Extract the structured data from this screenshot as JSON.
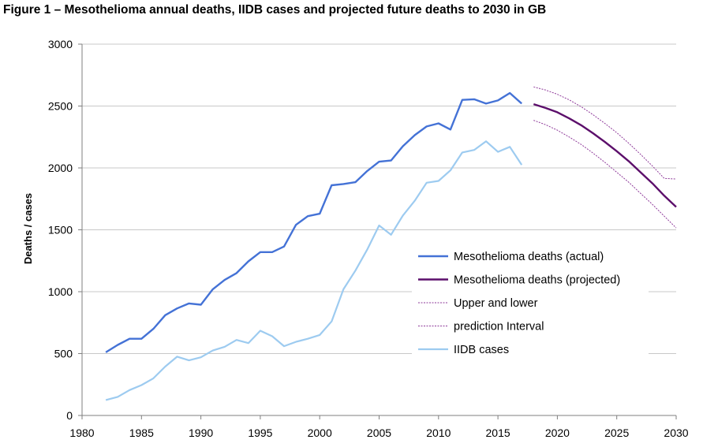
{
  "title": "Figure 1 – Mesothelioma annual deaths, IIDB cases and projected future deaths to 2030 in GB",
  "chart_data": {
    "type": "line",
    "title": "Figure 1 – Mesothelioma annual deaths, IIDB cases and projected future deaths to 2030 in GB",
    "xlabel": "",
    "ylabel": "Deaths / cases",
    "xlim": [
      1980,
      2030
    ],
    "ylim": [
      0,
      3000
    ],
    "xticks": [
      "1980",
      "1985",
      "1990",
      "1995",
      "2000",
      "2005",
      "2010",
      "2015",
      "2020",
      "2025",
      "2030"
    ],
    "yticks": [
      "0",
      "500",
      "1000",
      "1500",
      "2000",
      "2500",
      "3000"
    ],
    "grid": "horizontal",
    "legend_position": "right",
    "series": [
      {
        "name": "Mesothelioma deaths (actual)",
        "color": "#4472d6",
        "style": "solid",
        "x": [
          1982,
          1983,
          1984,
          1985,
          1986,
          1987,
          1988,
          1989,
          1990,
          1991,
          1992,
          1993,
          1994,
          1995,
          1996,
          1997,
          1998,
          1999,
          2000,
          2001,
          2002,
          2003,
          2004,
          2005,
          2006,
          2007,
          2008,
          2009,
          2010,
          2011,
          2012,
          2013,
          2014,
          2015,
          2016,
          2017
        ],
        "values": [
          510,
          570,
          620,
          620,
          700,
          810,
          865,
          905,
          895,
          1020,
          1095,
          1150,
          1245,
          1320,
          1320,
          1365,
          1540,
          1610,
          1630,
          1860,
          1870,
          1885,
          1975,
          2050,
          2060,
          2175,
          2265,
          2335,
          2360,
          2310,
          2550,
          2555,
          2520,
          2545,
          2605,
          2520
        ]
      },
      {
        "name": "Mesothelioma deaths (projected)",
        "color": "#5c0f6b",
        "style": "solid",
        "x": [
          2018,
          2019,
          2020,
          2021,
          2022,
          2023,
          2024,
          2025,
          2026,
          2027,
          2028,
          2029,
          2030
        ],
        "values": [
          2515,
          2485,
          2450,
          2400,
          2345,
          2280,
          2210,
          2135,
          2055,
          1965,
          1875,
          1775,
          1685
        ]
      },
      {
        "name": "Upper and lower",
        "color": "#8e3a9a",
        "style": "dotted",
        "x": [
          2018,
          2019,
          2020,
          2021,
          2022,
          2023,
          2024,
          2025,
          2026,
          2027,
          2028,
          2029,
          2030
        ],
        "values": [
          2655,
          2630,
          2595,
          2550,
          2495,
          2430,
          2360,
          2285,
          2200,
          2110,
          2015,
          1915,
          1910
        ]
      },
      {
        "name": "prediction Interval",
        "color": "#8e3a9a",
        "style": "dotted",
        "x": [
          2018,
          2019,
          2020,
          2021,
          2022,
          2023,
          2024,
          2025,
          2026,
          2027,
          2028,
          2029,
          2030
        ],
        "values": [
          2385,
          2350,
          2305,
          2250,
          2190,
          2120,
          2045,
          1965,
          1885,
          1795,
          1705,
          1610,
          1515
        ]
      },
      {
        "name": "IIDB cases",
        "color": "#9dcbf0",
        "style": "solid",
        "x": [
          1982,
          1983,
          1984,
          1985,
          1986,
          1987,
          1988,
          1989,
          1990,
          1991,
          1992,
          1993,
          1994,
          1995,
          1996,
          1997,
          1998,
          1999,
          2000,
          2001,
          2002,
          2003,
          2004,
          2005,
          2006,
          2007,
          2008,
          2009,
          2010,
          2011,
          2012,
          2013,
          2014,
          2015,
          2016,
          2017
        ],
        "values": [
          125,
          150,
          205,
          245,
          300,
          395,
          475,
          445,
          470,
          525,
          555,
          610,
          585,
          685,
          640,
          560,
          595,
          620,
          650,
          760,
          1020,
          1170,
          1340,
          1535,
          1460,
          1615,
          1735,
          1880,
          1895,
          1980,
          2125,
          2145,
          2215,
          2130,
          2170,
          2025
        ]
      }
    ]
  }
}
